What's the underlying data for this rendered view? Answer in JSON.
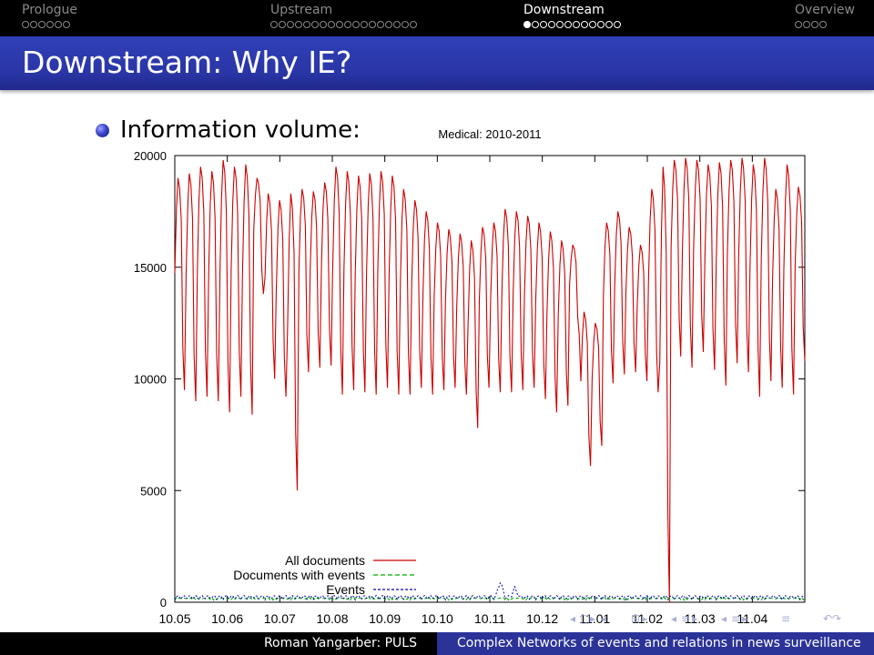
{
  "nav": {
    "sections": [
      {
        "label": "Prologue",
        "dots": 6,
        "current": -1
      },
      {
        "label": "Upstream",
        "dots": 18,
        "current": -1
      },
      {
        "label": "Downstream",
        "dots": 12,
        "current": 0
      },
      {
        "label": "Overview",
        "dots": 4,
        "current": -1
      }
    ],
    "active_index": 2
  },
  "frame": {
    "title": "Downstream: Why IE?",
    "bullet": "Information volume:"
  },
  "footer": {
    "author": "Roman Yangarber: PULS",
    "talk": "Complex Networks of events and relations in news surveillance"
  },
  "navigation_symbols": [
    "◂",
    "□",
    "▸",
    "◂",
    "⊟",
    "▸",
    "◂",
    "≡",
    "▸",
    "◂",
    "≡",
    "▸",
    "≡",
    "↶↷"
  ],
  "colors": {
    "all_documents": "#cc0000",
    "documents_with_events": "#00aa00",
    "events": "#0000aa",
    "title_bar": "#2a35a5",
    "footer_right": "#2b3399"
  },
  "chart_data": {
    "type": "line",
    "title": "Medical: 2010-2011",
    "xlabel": "",
    "ylabel": "",
    "x_tick_labels": [
      "10.05",
      "10.06",
      "10.07",
      "10.08",
      "10.09",
      "10.10",
      "10.11",
      "10.12",
      "11.01",
      "11.02",
      "11.03",
      "11.04"
    ],
    "y_ticks": [
      0,
      5000,
      10000,
      15000,
      20000
    ],
    "ylim": [
      0,
      20000
    ],
    "x_unit": "month (YY.MM), daily samples",
    "legend_position": "bottom-left",
    "series": [
      {
        "name": "All documents",
        "color": "#cc0000",
        "style": "solid",
        "weekly": [
          [
            19000,
            9500
          ],
          [
            19200,
            9000
          ],
          [
            19500,
            9200
          ],
          [
            19300,
            9000
          ],
          [
            19800,
            8500
          ],
          [
            19500,
            9200
          ],
          [
            19600,
            8400
          ],
          [
            19000,
            13800
          ],
          [
            18300,
            10000
          ],
          [
            18000,
            9200
          ],
          [
            18300,
            5000
          ],
          [
            18500,
            10300
          ],
          [
            18400,
            10500
          ],
          [
            18800,
            10600
          ],
          [
            19500,
            9300
          ],
          [
            19300,
            9500
          ],
          [
            19100,
            9400
          ],
          [
            19200,
            9300
          ],
          [
            19300,
            9600
          ],
          [
            19100,
            9300
          ],
          [
            18500,
            9300
          ],
          [
            18000,
            9600
          ],
          [
            17500,
            9300
          ],
          [
            17000,
            9500
          ],
          [
            16700,
            9600
          ],
          [
            16500,
            9300
          ],
          [
            16200,
            7800
          ],
          [
            16800,
            9600
          ],
          [
            17000,
            9400
          ],
          [
            17600,
            9400
          ],
          [
            17500,
            9500
          ],
          [
            17300,
            9600
          ],
          [
            17000,
            9100
          ],
          [
            16600,
            8500
          ],
          [
            16200,
            8800
          ],
          [
            16000,
            12000
          ],
          [
            13000,
            6100
          ],
          [
            12500,
            7000
          ],
          [
            17000,
            9800
          ],
          [
            17500,
            10200
          ],
          [
            16800,
            10300
          ],
          [
            16000,
            9900
          ],
          [
            18500,
            9400
          ],
          [
            19500,
            0
          ],
          [
            19800,
            11000
          ],
          [
            19900,
            10500
          ],
          [
            19800,
            11200
          ],
          [
            19600,
            10400
          ],
          [
            19700,
            9700
          ],
          [
            19800,
            10700
          ],
          [
            19900,
            10300
          ],
          [
            19600,
            9200
          ],
          [
            19900,
            9900
          ],
          [
            18500,
            9600
          ],
          [
            19600,
            9300
          ],
          [
            18600,
            10800
          ]
        ]
      },
      {
        "name": "Documents with events",
        "color": "#00aa00",
        "style": "dashed",
        "approx_level": 150
      },
      {
        "name": "Events",
        "color": "#0000aa",
        "style": "dotted",
        "approx_level": 200,
        "peaks": [
          {
            "month": "10.11",
            "value": 700
          },
          {
            "month": "10.11",
            "value": 400
          }
        ]
      }
    ]
  }
}
